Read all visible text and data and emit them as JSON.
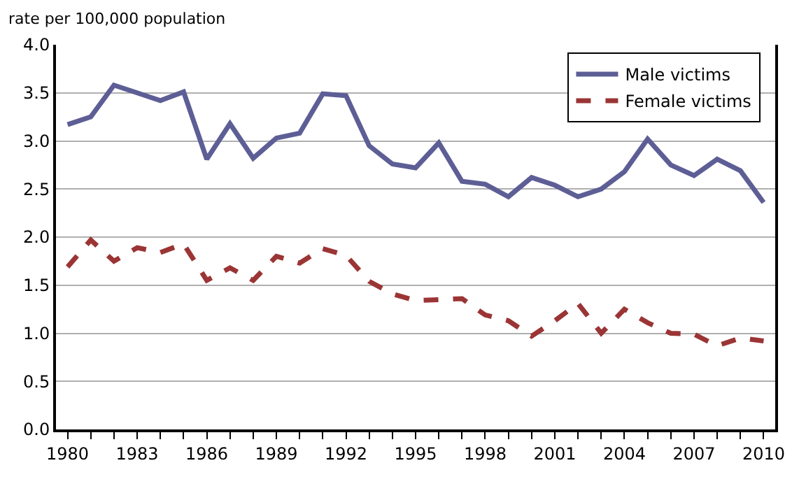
{
  "chart_data": {
    "type": "line",
    "ylabel": "rate per 100,000 population",
    "x": [
      1980,
      1981,
      1982,
      1983,
      1984,
      1985,
      1986,
      1987,
      1988,
      1989,
      1990,
      1991,
      1992,
      1993,
      1994,
      1995,
      1996,
      1997,
      1998,
      1999,
      2000,
      2001,
      2002,
      2003,
      2004,
      2005,
      2006,
      2007,
      2008,
      2009,
      2010
    ],
    "series": [
      {
        "name": "Male victims",
        "color": "#5e5e96",
        "line_style": "solid",
        "values": [
          3.17,
          3.25,
          3.58,
          3.5,
          3.42,
          3.51,
          2.81,
          3.18,
          2.82,
          3.03,
          3.08,
          3.49,
          3.47,
          2.95,
          2.76,
          2.72,
          2.98,
          2.58,
          2.55,
          2.42,
          2.62,
          2.54,
          2.42,
          2.5,
          2.68,
          3.02,
          2.75,
          2.64,
          2.81,
          2.69,
          2.36
        ]
      },
      {
        "name": "Female victims",
        "color": "#9b3535",
        "line_style": "dashed",
        "values": [
          1.69,
          1.97,
          1.75,
          1.89,
          1.84,
          1.93,
          1.55,
          1.68,
          1.55,
          1.8,
          1.73,
          1.88,
          1.81,
          1.54,
          1.41,
          1.34,
          1.35,
          1.36,
          1.19,
          1.13,
          0.97,
          1.13,
          1.31,
          1.0,
          1.25,
          1.11,
          1.0,
          0.99,
          0.87,
          0.95,
          0.92
        ]
      }
    ],
    "xlim": [
      1979.5,
      2010.5
    ],
    "xticks": [
      1980,
      {
        "value": 1981,
        "label": null
      },
      {
        "value": 1982,
        "label": null
      },
      1983,
      {
        "value": 1984,
        "label": null
      },
      {
        "value": 1985,
        "label": null
      },
      1986,
      {
        "value": 1987,
        "label": null
      },
      {
        "value": 1988,
        "label": null
      },
      1989,
      {
        "value": 1990,
        "label": null
      },
      {
        "value": 1991,
        "label": null
      },
      1992,
      {
        "value": 1993,
        "label": null
      },
      {
        "value": 1994,
        "label": null
      },
      1995,
      {
        "value": 1996,
        "label": null
      },
      {
        "value": 1997,
        "label": null
      },
      1998,
      {
        "value": 1999,
        "label": null
      },
      {
        "value": 2000,
        "label": null
      },
      2001,
      {
        "value": 2002,
        "label": null
      },
      {
        "value": 2003,
        "label": null
      },
      2004,
      {
        "value": 2005,
        "label": null
      },
      {
        "value": 2006,
        "label": null
      },
      2007,
      {
        "value": 2008,
        "label": null
      },
      {
        "value": 2009,
        "label": null
      },
      2010
    ],
    "ylim": [
      0,
      4
    ],
    "yticks": [
      {
        "value": 0,
        "label": "0.0"
      },
      0.5,
      {
        "value": 1,
        "label": "1.0"
      },
      1.5,
      {
        "value": 2,
        "label": "2.0"
      },
      2.5,
      {
        "value": 3,
        "label": "3.0"
      },
      3.5,
      {
        "value": 4,
        "label": "4.0"
      }
    ],
    "grid": "y",
    "legend": "top right",
    "marker": "none"
  }
}
